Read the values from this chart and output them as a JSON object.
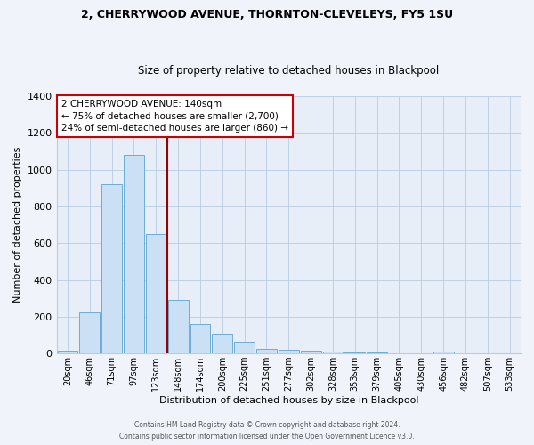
{
  "title1": "2, CHERRYWOOD AVENUE, THORNTON-CLEVELEYS, FY5 1SU",
  "title2": "Size of property relative to detached houses in Blackpool",
  "xlabel": "Distribution of detached houses by size in Blackpool",
  "ylabel": "Number of detached properties",
  "bar_labels": [
    "20sqm",
    "46sqm",
    "71sqm",
    "97sqm",
    "123sqm",
    "148sqm",
    "174sqm",
    "200sqm",
    "225sqm",
    "251sqm",
    "277sqm",
    "302sqm",
    "328sqm",
    "353sqm",
    "379sqm",
    "405sqm",
    "430sqm",
    "456sqm",
    "482sqm",
    "507sqm",
    "533sqm"
  ],
  "bar_heights": [
    15,
    225,
    920,
    1080,
    650,
    290,
    160,
    105,
    65,
    25,
    18,
    15,
    10,
    8,
    5,
    0,
    0,
    12,
    0,
    0,
    0
  ],
  "bar_color": "#cce0f5",
  "bar_edge_color": "#6aaed6",
  "vline_color": "#990000",
  "annotation_line1": "2 CHERRYWOOD AVENUE: 140sqm",
  "annotation_line2": "← 75% of detached houses are smaller (2,700)",
  "annotation_line3": "24% of semi-detached houses are larger (860) →",
  "annotation_box_edge": "#cc0000",
  "ylim": [
    0,
    1400
  ],
  "yticks": [
    0,
    200,
    400,
    600,
    800,
    1000,
    1200,
    1400
  ],
  "footer1": "Contains HM Land Registry data © Crown copyright and database right 2024.",
  "footer2": "Contains public sector information licensed under the Open Government Licence v3.0.",
  "fig_bg_color": "#f0f4fa",
  "plot_bg_color": "#e8eef8"
}
